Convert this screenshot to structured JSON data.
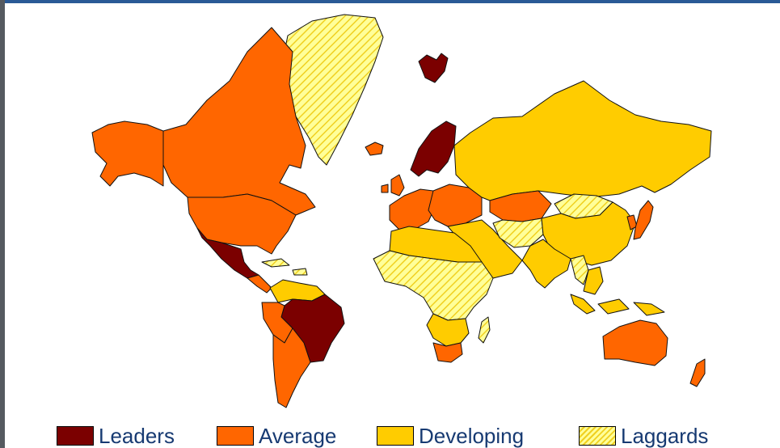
{
  "legend": {
    "items": [
      {
        "key": "leaders",
        "label": "Leaders",
        "color": "#7b0000",
        "pattern": "solid"
      },
      {
        "key": "average",
        "label": "Average",
        "color": "#ff6600",
        "pattern": "solid"
      },
      {
        "key": "developing",
        "label": "Developing",
        "color": "#ffcc00",
        "pattern": "solid"
      },
      {
        "key": "laggards",
        "label": "Laggards",
        "color": "#ffff99",
        "pattern": "hatched"
      }
    ]
  },
  "regions": {
    "greenland": "laggards",
    "svalbard": "leaders",
    "iceland": "average",
    "canada": "average",
    "alaska": "average",
    "usa": "average",
    "mexico": "leaders",
    "central_america": "average",
    "caribbean": "laggards",
    "colombia_venezuela": "developing",
    "brazil": "leaders",
    "south_america_west": "average",
    "chile_argentina": "average",
    "scandinavia": "leaders",
    "uk_ireland": "average",
    "western_europe": "average",
    "eastern_europe": "average",
    "russia": "developing",
    "turkey_middle_east": "developing",
    "kazakhstan": "average",
    "central_asia": "laggards",
    "mongolia": "laggards",
    "china": "developing",
    "japan": "average",
    "korea": "average",
    "india": "developing",
    "southeast_asia": "developing",
    "indochina": "laggards",
    "indonesia": "developing",
    "north_africa": "developing",
    "sub_saharan_africa": "laggards",
    "madagascar": "laggards",
    "southern_africa": "developing",
    "south_africa": "average",
    "australia": "average",
    "new_zealand": "average"
  }
}
